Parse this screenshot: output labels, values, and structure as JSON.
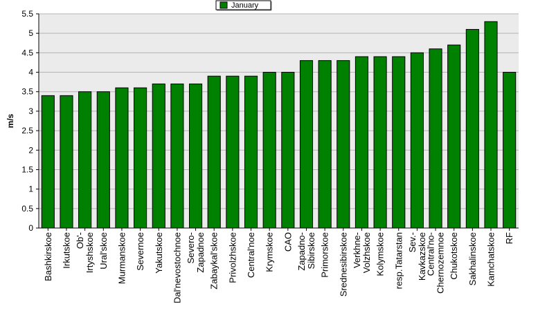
{
  "chart_data": {
    "type": "bar",
    "categories": [
      "Bashkirskoe",
      "Irkutskoe",
      "Ob'-Irtyshskoe",
      "Ural'skoe",
      "Murmanskoe",
      "Severnoe",
      "Yakutskoe",
      "Dal'nevostochnoe",
      "Severo-Zapadnoe",
      "Zabaykal'skoe",
      "Privolzhskoe",
      "Central'noe",
      "Krymskoe",
      "CAO",
      "Zapadno-Sibirskoe",
      "Primorskoe",
      "Srednesibirskoe",
      "Verkhne-Volzhskoe",
      "Kolymskoe",
      "resp.Tatarstan",
      "Sev.-Kavkazskoe",
      "Central'no-Chernozemnoe",
      "Chukotskoe",
      "Sakhalinskoe",
      "Kamchatskoe",
      "RF"
    ],
    "category_lines": [
      [
        "Bashkirskoe"
      ],
      [
        "Irkutskoe"
      ],
      [
        "Ob'-",
        "Irtyshskoe"
      ],
      [
        "Ural'skoe"
      ],
      [
        "Murmanskoe"
      ],
      [
        "Severnoe"
      ],
      [
        "Yakutskoe"
      ],
      [
        "Dal'nevostochnoe"
      ],
      [
        "Severo-",
        "Zapadnoe"
      ],
      [
        "Zabaykal'skoe"
      ],
      [
        "Privolzhskoe"
      ],
      [
        "Central'noe"
      ],
      [
        "Krymskoe"
      ],
      [
        "CAO"
      ],
      [
        "Zapadno-",
        "Sibirskoe"
      ],
      [
        "Primorskoe"
      ],
      [
        "Srednesibirskoe"
      ],
      [
        "Verkhne-",
        "Volzhskoe"
      ],
      [
        "Kolymskoe"
      ],
      [
        "resp.Tatarstan"
      ],
      [
        "Sev.-",
        "Kavkazskoe"
      ],
      [
        "Central'no-",
        "Chernozemnoe"
      ],
      [
        "Chukotskoe"
      ],
      [
        "Sakhalinskoe"
      ],
      [
        "Kamchatskoe"
      ],
      [
        "RF"
      ]
    ],
    "series": [
      {
        "name": "January",
        "color": "#008000",
        "values": [
          3.4,
          3.4,
          3.5,
          3.5,
          3.6,
          3.6,
          3.7,
          3.7,
          3.7,
          3.9,
          3.9,
          3.9,
          4.0,
          4.0,
          4.3,
          4.3,
          4.3,
          4.4,
          4.4,
          4.4,
          4.5,
          4.6,
          4.7,
          5.1,
          5.3,
          4.0
        ]
      }
    ],
    "xlabel": "",
    "ylabel": "m/s",
    "ylim": [
      0,
      5.5
    ],
    "yticks": [
      "0",
      "0.5",
      "1",
      "1.5",
      "2",
      "2.5",
      "3",
      "3.5",
      "4",
      "4.5",
      "5",
      "5.5"
    ],
    "grid": true,
    "legend": "top-center",
    "plot_background": "#ebebeb"
  }
}
